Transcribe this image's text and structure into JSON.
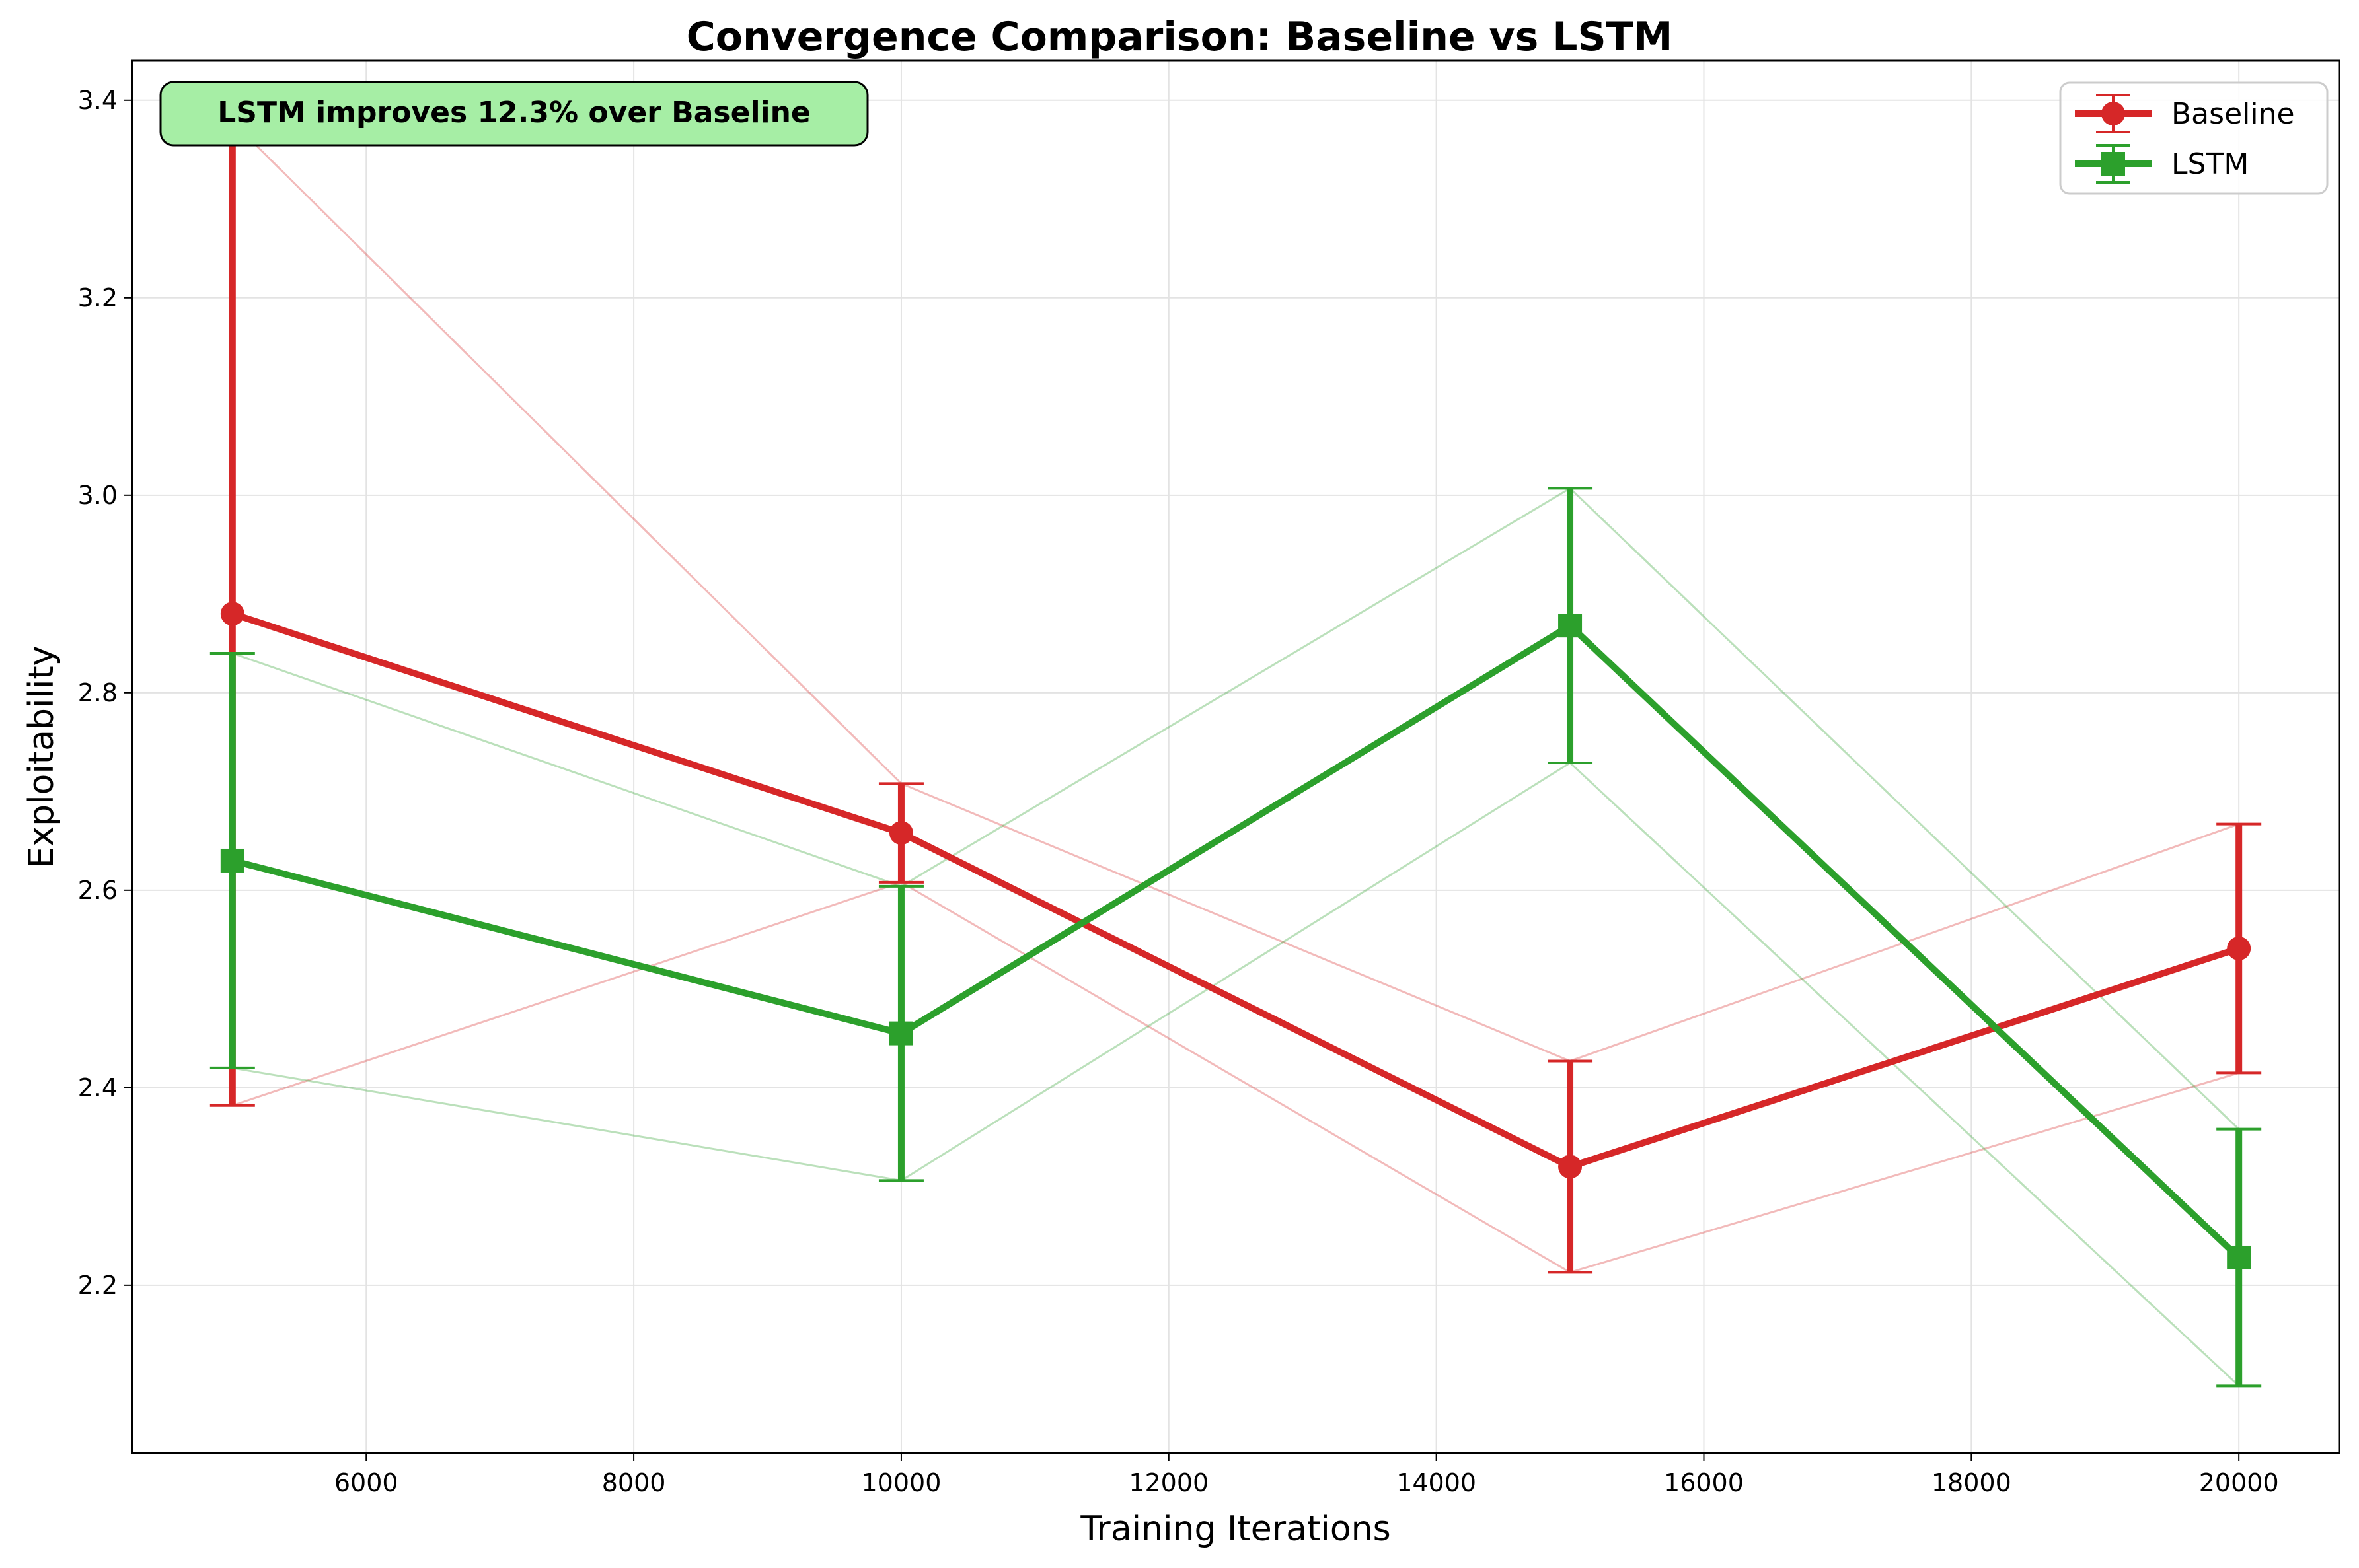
{
  "chart_data": {
    "type": "line",
    "title": "Convergence Comparison: Baseline vs LSTM",
    "xlabel": "Training Iterations",
    "ylabel": "Exploitability",
    "xlim": [
      4250,
      20750
    ],
    "ylim": [
      2.03,
      3.44
    ],
    "xticks": [
      6000,
      8000,
      10000,
      12000,
      14000,
      16000,
      18000,
      20000
    ],
    "yticks": [
      2.2,
      2.4,
      2.6,
      2.8,
      3.0,
      3.2,
      3.4
    ],
    "xtick_labels": [
      "6000",
      "8000",
      "10000",
      "12000",
      "14000",
      "16000",
      "18000",
      "20000"
    ],
    "ytick_labels": [
      "2.2",
      "2.4",
      "2.6",
      "2.8",
      "3.0",
      "3.2",
      "3.4"
    ],
    "grid": true,
    "legend_position": "top-right",
    "annotation": "LSTM improves 12.3% over Baseline",
    "x": [
      5000,
      10000,
      15000,
      20000
    ],
    "series": [
      {
        "name": "Baseline",
        "color": "#d62728",
        "marker": "circle",
        "values": [
          2.88,
          2.658,
          2.32,
          2.541
        ],
        "error": [
          0.498,
          0.05,
          0.107,
          0.126
        ]
      },
      {
        "name": "LSTM",
        "color": "#2ca02c",
        "marker": "square",
        "values": [
          2.63,
          2.455,
          2.868,
          2.228
        ],
        "error": [
          0.21,
          0.149,
          0.139,
          0.13
        ]
      }
    ]
  }
}
